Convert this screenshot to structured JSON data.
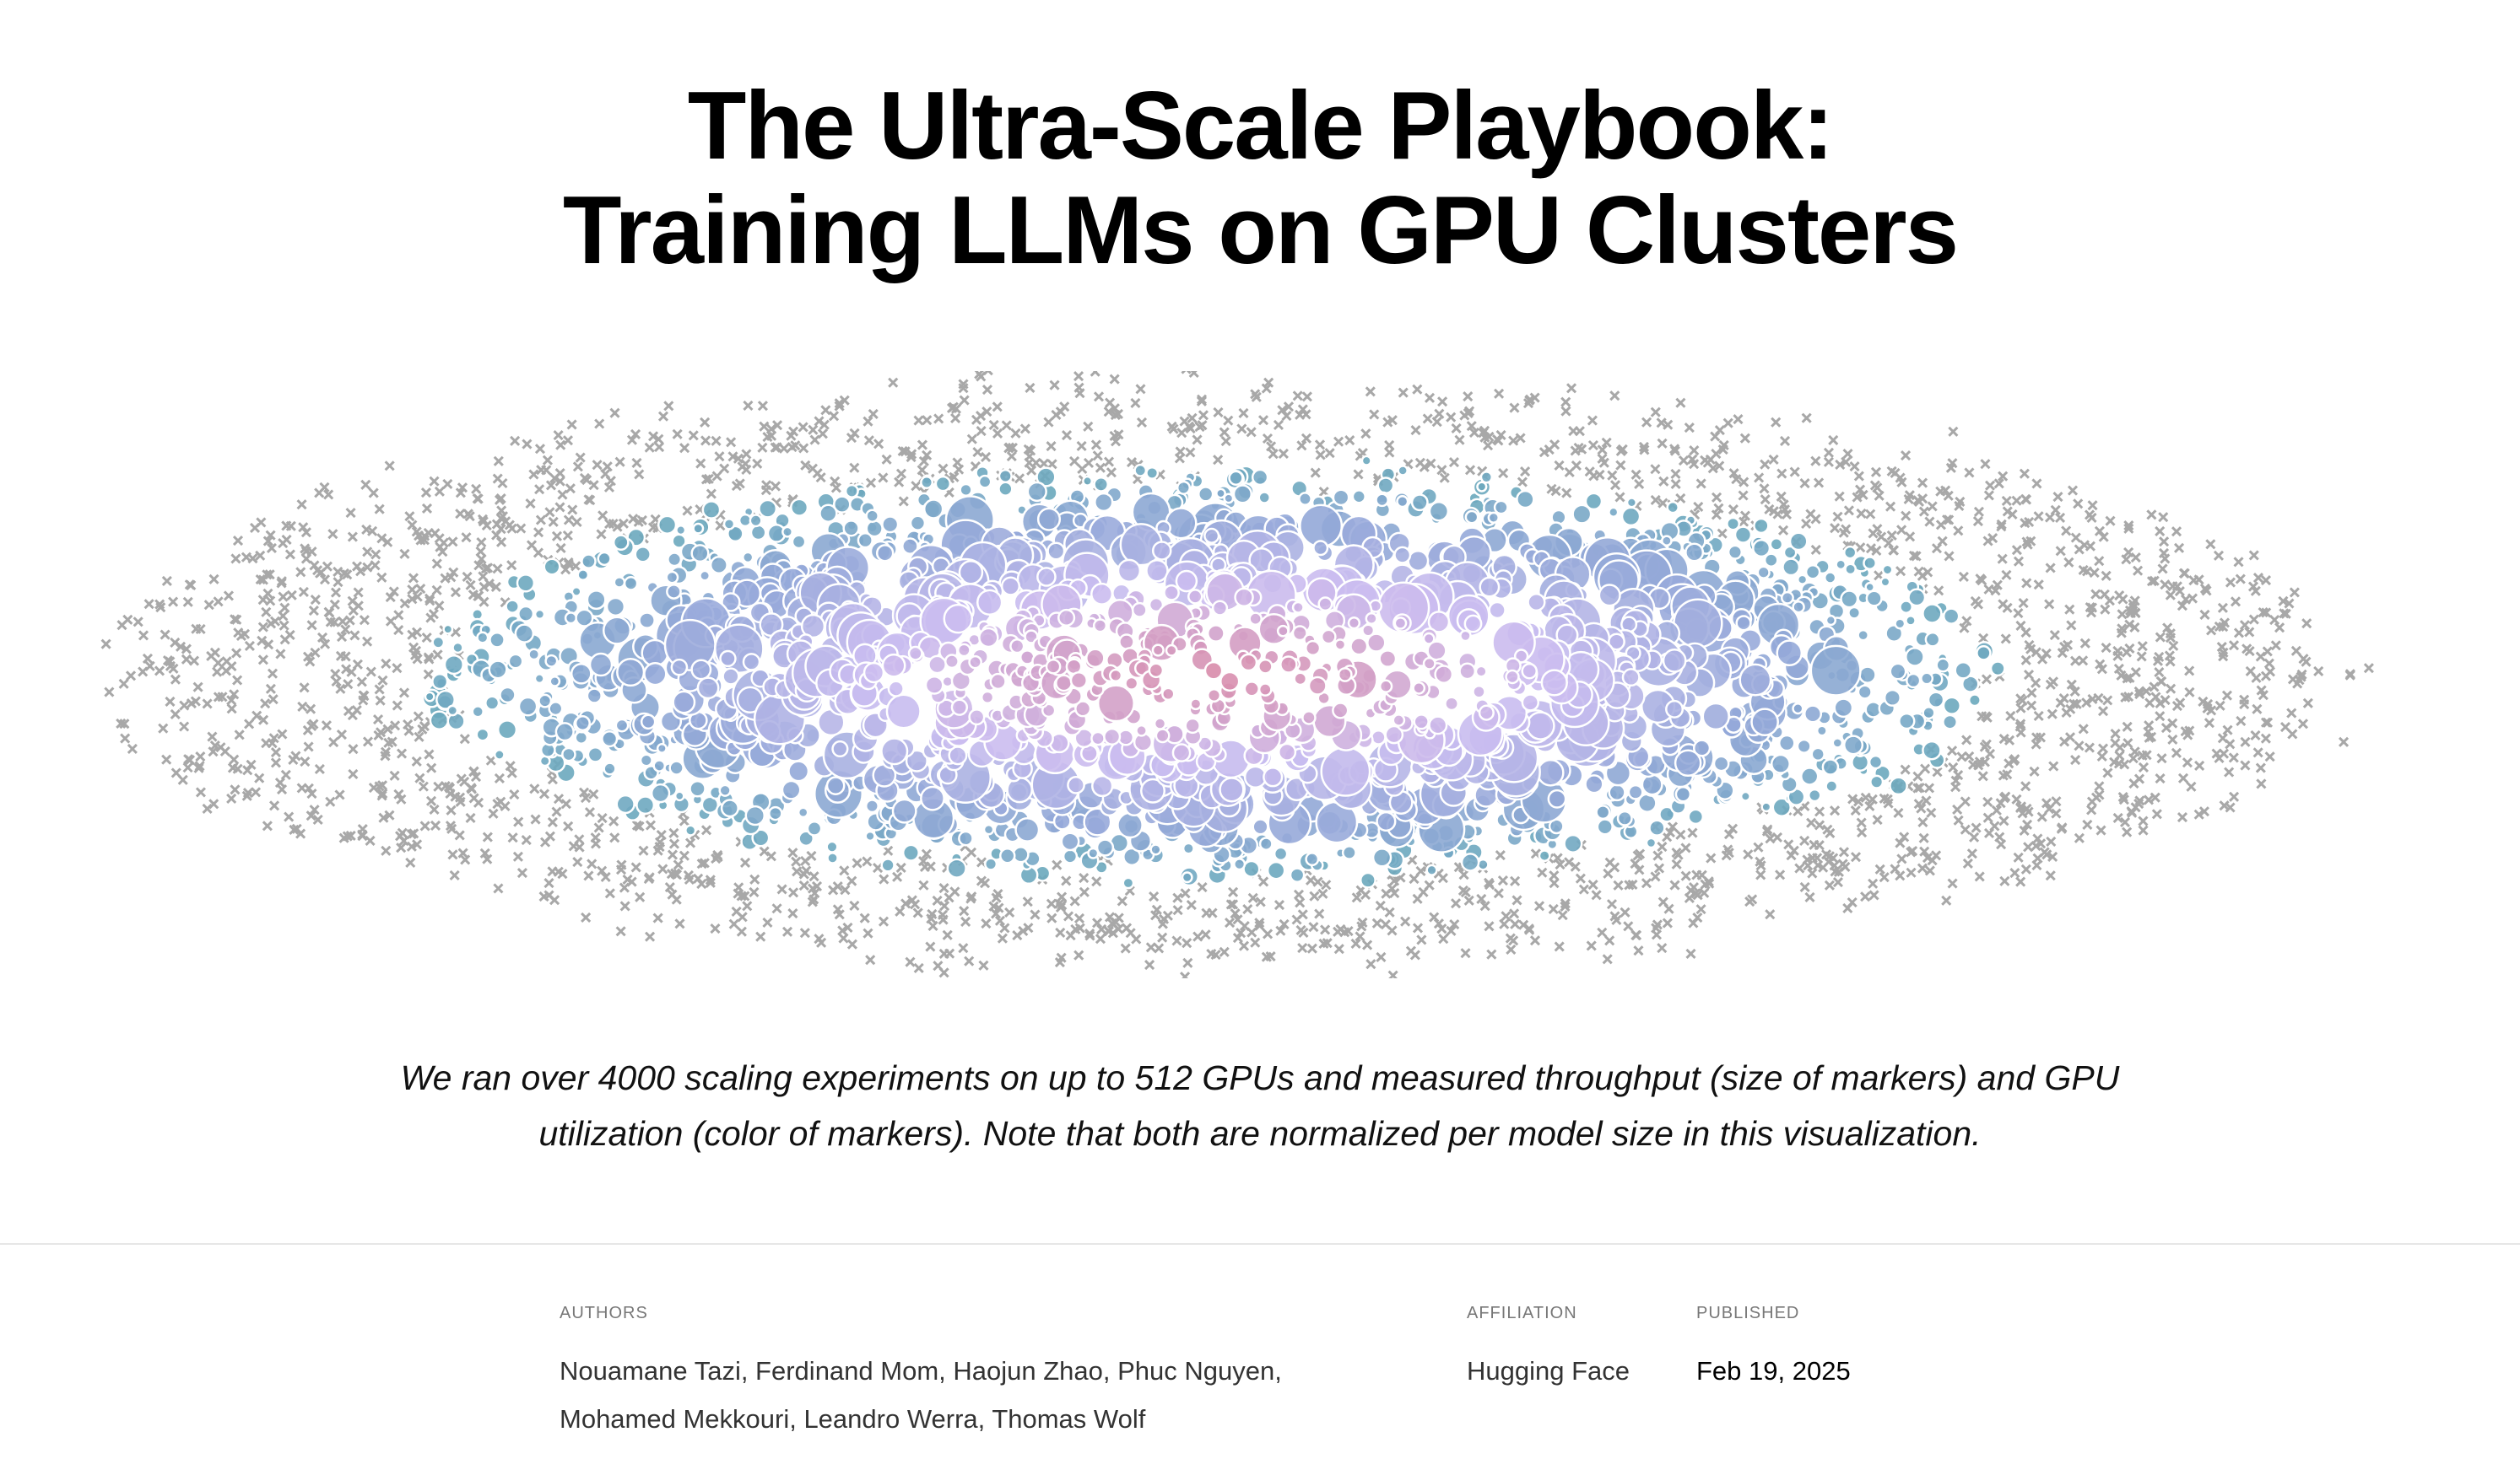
{
  "header": {
    "title_line1": "The Ultra-Scale Playbook:",
    "title_line2": "Training LLMs on GPU Clusters"
  },
  "visualization": {
    "description_markers": "circles sized by throughput, colored by GPU utilization; gray x markers",
    "colors": {
      "pink": "#d98aa8",
      "lavender": "#cbbdf0",
      "blue": "#94a9d8",
      "teal": "#6aa8bd",
      "gray_x": "#a8a8a8"
    }
  },
  "caption": "We ran over 4000 scaling experiments on up to 512 GPUs and measured throughput (size of markers) and GPU utilization (color of markers). Note that both are normalized per model size in this visualization.",
  "meta": {
    "authors_label": "Authors",
    "authors": "Nouamane Tazi, Ferdinand Mom, Haojun Zhao, Phuc Nguyen, Mohamed Mekkouri, Leandro Werra, Thomas Wolf",
    "affiliation_label": "Affiliation",
    "affiliation": "Hugging Face",
    "published_label": "Published",
    "published": "Feb 19, 2025"
  }
}
